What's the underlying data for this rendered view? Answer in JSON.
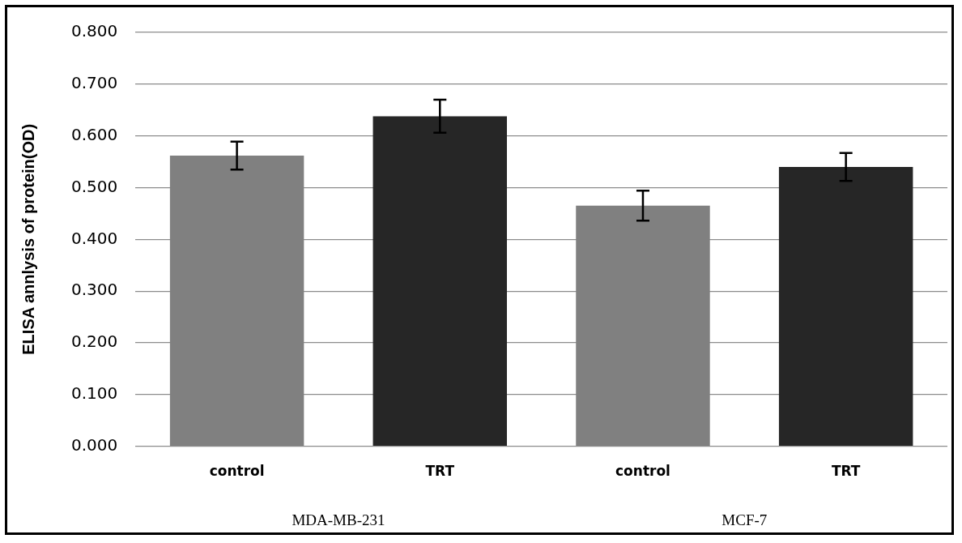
{
  "chart_data": {
    "type": "bar",
    "ylabel": "ELISA annlysis of protein(OD)",
    "categories": [
      "control",
      "TRT",
      "control",
      "TRT"
    ],
    "values": [
      0.562,
      0.638,
      0.465,
      0.54
    ],
    "colors": [
      "#808080",
      "#262626",
      "#808080",
      "#262626"
    ],
    "errors": [
      0.027,
      0.032,
      0.029,
      0.027
    ],
    "ylim": [
      0,
      0.8
    ],
    "yticks": [
      {
        "value": 0,
        "label": "0.000"
      },
      {
        "value": 0.1,
        "label": "0.100"
      },
      {
        "value": 0.2,
        "label": "0.200"
      },
      {
        "value": 0.3,
        "label": "0.300"
      },
      {
        "value": 0.4,
        "label": "0.400"
      },
      {
        "value": 0.5,
        "label": "0.500"
      },
      {
        "value": 0.6,
        "label": "0.600"
      },
      {
        "value": 0.7,
        "label": "0.700"
      },
      {
        "value": 0.8,
        "label": "0.800"
      }
    ],
    "grid": "y",
    "annotations": [
      "MDA-MB-231",
      "MCF-7"
    ]
  }
}
